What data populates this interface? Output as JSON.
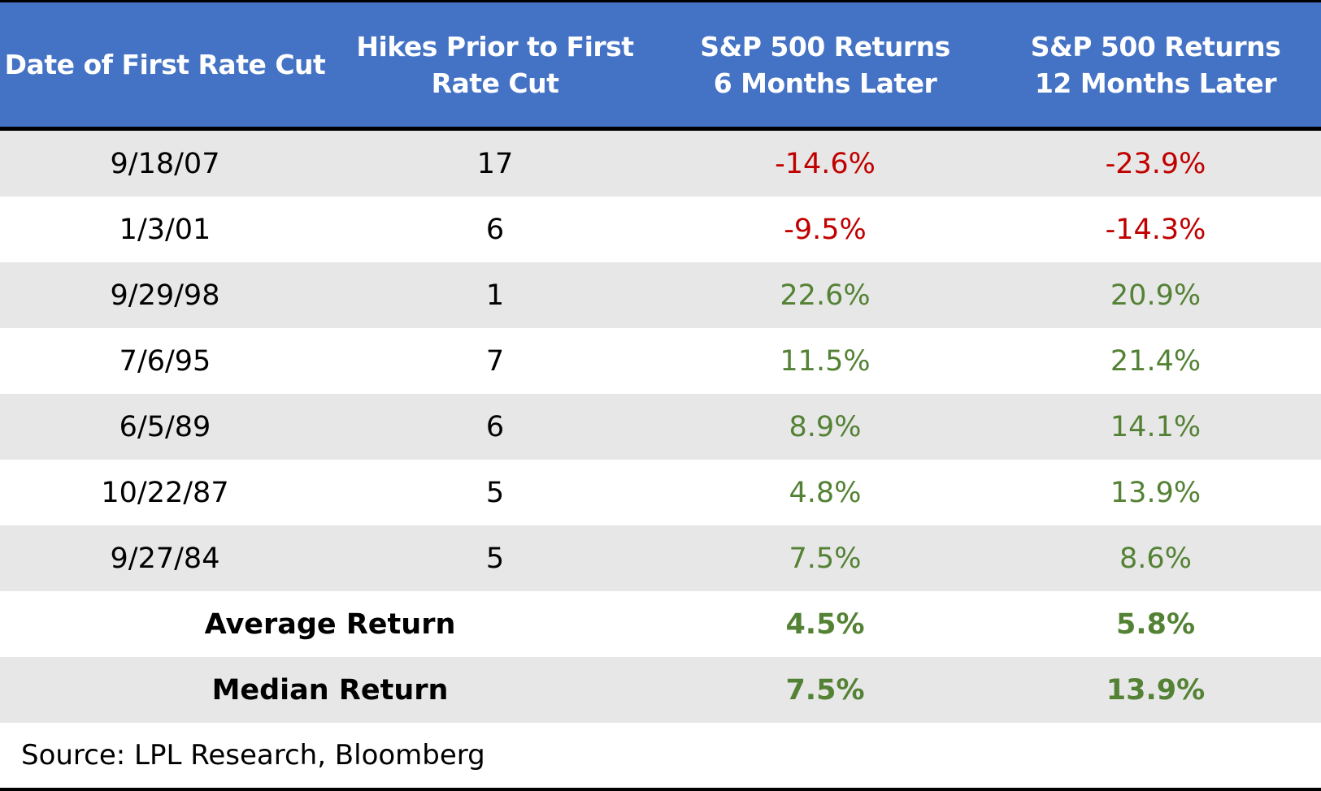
{
  "chart_data": {
    "type": "table",
    "columns": [
      "Date of First Rate Cut",
      "Hikes Prior to First Rate Cut",
      "S&P 500 Returns 6 Months Later",
      "S&P 500 Returns 12 Months Later"
    ],
    "header_lines": [
      [
        "Date of First Rate Cut"
      ],
      [
        "Hikes Prior to First",
        "Rate Cut"
      ],
      [
        "S&P 500 Returns",
        "6 Months Later"
      ],
      [
        "S&P 500 Returns",
        "12 Months Later"
      ]
    ],
    "rows": [
      {
        "date": "9/18/07",
        "hikes": "17",
        "ret6": "-14.6%",
        "ret12": "-23.9%"
      },
      {
        "date": "1/3/01",
        "hikes": "6",
        "ret6": "-9.5%",
        "ret12": "-14.3%"
      },
      {
        "date": "9/29/98",
        "hikes": "1",
        "ret6": "22.6%",
        "ret12": "20.9%"
      },
      {
        "date": "7/6/95",
        "hikes": "7",
        "ret6": "11.5%",
        "ret12": "21.4%"
      },
      {
        "date": "6/5/89",
        "hikes": "6",
        "ret6": "8.9%",
        "ret12": "14.1%"
      },
      {
        "date": "10/22/87",
        "hikes": "5",
        "ret6": "4.8%",
        "ret12": "13.9%"
      },
      {
        "date": "9/27/84",
        "hikes": "5",
        "ret6": "7.5%",
        "ret12": "8.6%"
      }
    ],
    "summary": [
      {
        "label": "Average Return",
        "ret6": "4.5%",
        "ret12": "5.8%"
      },
      {
        "label": "Median Return",
        "ret6": "7.5%",
        "ret12": "13.9%"
      }
    ],
    "source": "Source: LPL Research, Bloomberg"
  },
  "colors": {
    "header_bg": "#4472C4",
    "negative": "#C00000",
    "positive": "#548235",
    "row_shade": "#E7E7E7"
  }
}
